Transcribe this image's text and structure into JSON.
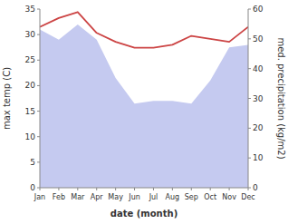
{
  "chart_data": {
    "type": "area",
    "categories": [
      "Jan",
      "Feb",
      "Mar",
      "Apr",
      "May",
      "Jun",
      "Jul",
      "Aug",
      "Sep",
      "Oct",
      "Nov",
      "Dec"
    ],
    "series": [
      {
        "type": "area",
        "color": "#c5caf0",
        "values": [
          31.0,
          29.0,
          32.0,
          29.0,
          21.5,
          16.5,
          17.0,
          17.0,
          16.5,
          21.0,
          27.5,
          28.0
        ]
      },
      {
        "type": "line",
        "axis": "y2",
        "color": "#cc4444",
        "values": [
          54,
          57,
          59,
          52,
          49,
          47,
          47,
          48,
          51,
          50,
          49,
          54
        ]
      }
    ],
    "xlabel": "date (month)",
    "ylabel": "max temp (C)",
    "y2label": "med. precipitation (kg/m2)",
    "ylim": [
      0,
      35
    ],
    "yticks": [
      0,
      5,
      10,
      15,
      20,
      25,
      30,
      35
    ],
    "y2lim": [
      0,
      60
    ],
    "y2ticks": [
      0,
      10,
      20,
      30,
      40,
      50,
      60
    ],
    "grid": false
  }
}
